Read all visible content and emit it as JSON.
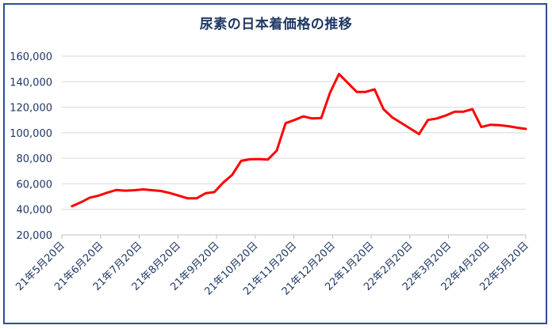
{
  "chart_data": {
    "type": "line",
    "title": "尿素の日本着価格の推移",
    "xlabel": "",
    "ylabel": "",
    "ylim": [
      20000,
      160000
    ],
    "yticks": [
      20000,
      40000,
      60000,
      80000,
      100000,
      120000,
      140000,
      160000
    ],
    "ytick_labels": [
      "20,000",
      "40,000",
      "60,000",
      "80,000",
      "100,000",
      "120,000",
      "140,000",
      "160,000"
    ],
    "xtick_labels": [
      "21年5月20日",
      "21年6月20日",
      "21年7月20日",
      "21年8月20日",
      "21年9月20日",
      "21年10月20日",
      "21年11月20日",
      "21年12月20日",
      "22年1月20日",
      "22年2月20日",
      "22年3月20日",
      "22年4月20日",
      "22年5月20日"
    ],
    "x_start": "2021-05-20",
    "x_end": "2022-05-20",
    "grid": true,
    "line_color": "#ff0000",
    "series": [
      {
        "x": [
          "2021-05-28",
          "2021-06-04",
          "2021-06-11",
          "2021-06-18",
          "2021-06-25",
          "2021-07-02",
          "2021-07-09",
          "2021-07-16",
          "2021-07-23",
          "2021-07-30",
          "2021-08-06",
          "2021-08-13",
          "2021-08-20",
          "2021-08-27",
          "2021-09-03",
          "2021-09-10",
          "2021-09-17",
          "2021-09-24",
          "2021-10-01",
          "2021-10-08",
          "2021-10-15",
          "2021-10-22",
          "2021-10-29",
          "2021-11-05",
          "2021-11-12",
          "2021-11-19",
          "2021-11-26",
          "2021-12-03",
          "2021-12-10",
          "2021-12-17",
          "2021-12-24",
          "2022-01-07",
          "2022-01-14",
          "2022-01-21",
          "2022-01-28",
          "2022-02-04",
          "2022-02-25",
          "2022-03-04",
          "2022-03-11",
          "2022-03-18",
          "2022-03-25",
          "2022-04-01",
          "2022-04-08",
          "2022-04-15",
          "2022-04-22",
          "2022-04-29",
          "2022-05-06",
          "2022-05-13",
          "2022-05-20"
        ],
        "values": [
          42500,
          45500,
          49200,
          50800,
          53200,
          55200,
          54600,
          55000,
          55600,
          55000,
          54400,
          52800,
          50700,
          48600,
          48600,
          52600,
          53500,
          61000,
          67000,
          78000,
          79200,
          79400,
          79000,
          86000,
          107500,
          110000,
          112800,
          111200,
          111500,
          131500,
          146000,
          132000,
          132000,
          134000,
          118500,
          112000,
          99000,
          110000,
          111200,
          113500,
          116500,
          116500,
          118500,
          104500,
          106200,
          106000,
          105200,
          104000,
          103000
        ]
      }
    ]
  }
}
